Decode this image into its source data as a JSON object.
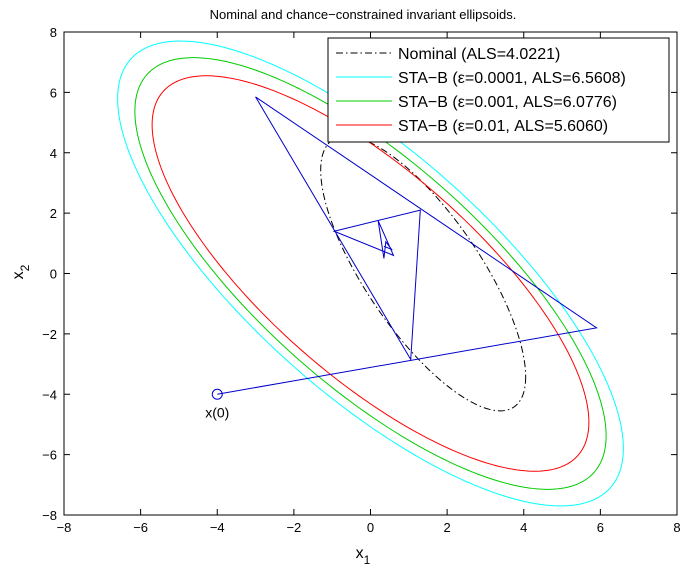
{
  "chart_data": {
    "type": "line",
    "title": "Nominal and chance−constrained invariant ellipsoids.",
    "xlabel": "x",
    "xlabel_sub": "1",
    "ylabel": "x",
    "ylabel_sub": "2",
    "xlim": [
      -8,
      8
    ],
    "ylim": [
      -8,
      8
    ],
    "xticks": [
      -8,
      -6,
      -4,
      -2,
      0,
      2,
      4,
      6,
      8
    ],
    "yticks": [
      -8,
      -6,
      -4,
      -2,
      0,
      2,
      4,
      6,
      8
    ],
    "xtick_labels": [
      "−8",
      "−6",
      "−4",
      "−2",
      "0",
      "2",
      "4",
      "6",
      "8"
    ],
    "ytick_labels": [
      "−8",
      "−6",
      "−4",
      "−2",
      "0",
      "2",
      "4",
      "6",
      "8"
    ],
    "grid": false,
    "legend_position": "top-right",
    "series": [
      {
        "name": "Nominal (ALS=4.0221)",
        "kind": "ellipse",
        "color": "#000000",
        "style": "dashdot",
        "center": [
          0,
          0
        ],
        "bbox_x": [
          -1.3,
          4.05
        ],
        "bbox_y": [
          -4.55,
          4.55
        ]
      },
      {
        "name": "STA−B (ε=0.0001, ALS=6.5608)",
        "kind": "ellipse",
        "color": "#00ffff",
        "style": "solid",
        "center": [
          0,
          0
        ],
        "bbox_x": [
          -6.6,
          6.6
        ],
        "bbox_y": [
          -7.7,
          7.7
        ]
      },
      {
        "name": "STA−B (ε=0.001, ALS=6.0776)",
        "kind": "ellipse",
        "color": "#00cc00",
        "style": "solid",
        "center": [
          0,
          0
        ],
        "bbox_x": [
          -6.15,
          6.15
        ],
        "bbox_y": [
          -7.15,
          7.15
        ]
      },
      {
        "name": "STA−B (ε=0.01, ALS=5.6060)",
        "kind": "ellipse",
        "color": "#ff0000",
        "style": "solid",
        "center": [
          0,
          0
        ],
        "bbox_x": [
          -5.7,
          5.7
        ],
        "bbox_y": [
          -6.55,
          6.55
        ]
      }
    ],
    "trajectory": {
      "color": "#0000cc",
      "points": [
        [
          -4.0,
          -4.0
        ],
        [
          5.9,
          -1.8
        ],
        [
          -3.0,
          5.85
        ],
        [
          1.05,
          -2.85
        ],
        [
          1.3,
          2.1
        ],
        [
          -0.95,
          1.4
        ],
        [
          0.6,
          0.6
        ],
        [
          0.2,
          1.75
        ],
        [
          0.35,
          0.5
        ],
        [
          0.4,
          1.05
        ],
        [
          0.55,
          0.8
        ],
        [
          0.35,
          0.9
        ]
      ]
    },
    "start_marker": {
      "point": [
        -4.0,
        -4.0
      ],
      "label": "x(0)"
    }
  }
}
